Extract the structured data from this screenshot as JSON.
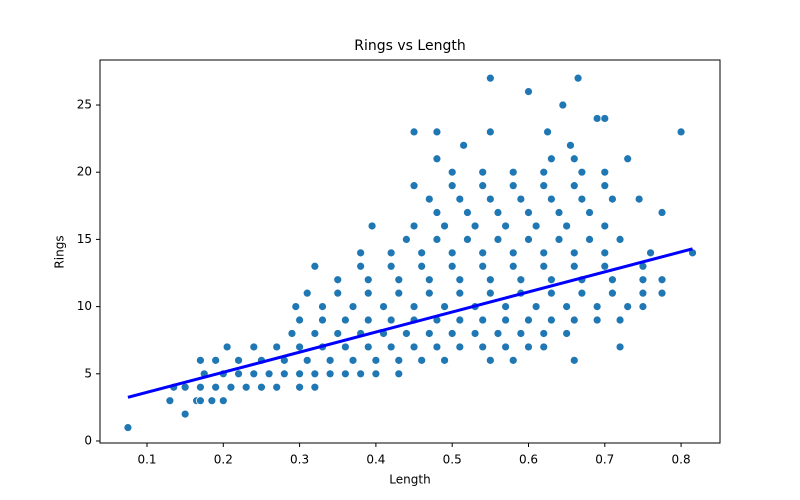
{
  "chart_data": {
    "type": "scatter",
    "title": "Rings vs Length",
    "x_label": "Length",
    "y_label": "Rings",
    "color": "#1f77b4",
    "x": [
      0.13,
      0.165,
      0.17,
      0.185,
      0.2,
      0.135,
      0.15,
      0.17,
      0.19,
      0.21,
      0.23,
      0.25,
      0.27,
      0.3,
      0.32,
      0.175,
      0.2,
      0.22,
      0.24,
      0.26,
      0.28,
      0.3,
      0.32,
      0.34,
      0.36,
      0.38,
      0.4,
      0.43,
      0.17,
      0.19,
      0.22,
      0.25,
      0.28,
      0.31,
      0.34,
      0.37,
      0.4,
      0.43,
      0.46,
      0.49,
      0.55,
      0.205,
      0.24,
      0.27,
      0.3,
      0.33,
      0.36,
      0.39,
      0.42,
      0.45,
      0.48,
      0.51,
      0.54,
      0.57,
      0.6,
      0.62,
      0.72,
      0.29,
      0.32,
      0.35,
      0.38,
      0.41,
      0.44,
      0.47,
      0.5,
      0.53,
      0.56,
      0.59,
      0.62,
      0.65,
      0.3,
      0.33,
      0.36,
      0.39,
      0.42,
      0.45,
      0.48,
      0.51,
      0.54,
      0.57,
      0.6,
      0.63,
      0.66,
      0.69,
      0.72,
      0.295,
      0.33,
      0.37,
      0.41,
      0.45,
      0.49,
      0.53,
      0.57,
      0.61,
      0.65,
      0.69,
      0.73,
      0.75,
      0.31,
      0.35,
      0.39,
      0.43,
      0.47,
      0.51,
      0.55,
      0.59,
      0.63,
      0.67,
      0.71,
      0.75,
      0.775,
      0.35,
      0.39,
      0.43,
      0.47,
      0.51,
      0.55,
      0.59,
      0.63,
      0.67,
      0.71,
      0.75,
      0.775,
      0.32,
      0.38,
      0.42,
      0.46,
      0.5,
      0.54,
      0.58,
      0.62,
      0.66,
      0.7,
      0.75,
      0.38,
      0.42,
      0.46,
      0.5,
      0.54,
      0.58,
      0.62,
      0.66,
      0.7,
      0.76,
      0.44,
      0.48,
      0.52,
      0.56,
      0.6,
      0.64,
      0.68,
      0.72,
      0.395,
      0.45,
      0.49,
      0.53,
      0.57,
      0.61,
      0.65,
      0.7,
      0.48,
      0.52,
      0.56,
      0.6,
      0.64,
      0.68,
      0.775,
      0.47,
      0.51,
      0.55,
      0.59,
      0.63,
      0.67,
      0.71,
      0.745,
      0.45,
      0.5,
      0.54,
      0.58,
      0.62,
      0.66,
      0.7,
      0.5,
      0.54,
      0.58,
      0.62,
      0.67,
      0.7,
      0.48,
      0.63,
      0.66,
      0.73,
      0.075,
      0.15,
      0.515,
      0.655,
      0.45,
      0.48,
      0.55,
      0.625,
      0.8,
      0.69,
      0.7,
      0.645,
      0.6,
      0.55,
      0.665,
      0.815,
      0.66,
      0.58
    ],
    "values": [
      3,
      3,
      3,
      3,
      3,
      4,
      4,
      4,
      4,
      4,
      4,
      4,
      4,
      4,
      4,
      5,
      5,
      5,
      5,
      5,
      5,
      5,
      5,
      5,
      5,
      5,
      5,
      5,
      6,
      6,
      6,
      6,
      6,
      6,
      6,
      6,
      6,
      6,
      6,
      6,
      6,
      7,
      7,
      7,
      7,
      7,
      7,
      7,
      7,
      7,
      7,
      7,
      7,
      7,
      7,
      7,
      7,
      8,
      8,
      8,
      8,
      8,
      8,
      8,
      8,
      8,
      8,
      8,
      8,
      8,
      9,
      9,
      9,
      9,
      9,
      9,
      9,
      9,
      9,
      9,
      9,
      9,
      9,
      9,
      9,
      10,
      10,
      10,
      10,
      10,
      10,
      10,
      10,
      10,
      10,
      10,
      10,
      10,
      11,
      11,
      11,
      11,
      11,
      11,
      11,
      11,
      11,
      11,
      11,
      11,
      11,
      12,
      12,
      12,
      12,
      12,
      12,
      12,
      12,
      12,
      12,
      12,
      12,
      13,
      13,
      13,
      13,
      13,
      13,
      13,
      13,
      13,
      13,
      13,
      14,
      14,
      14,
      14,
      14,
      14,
      14,
      14,
      14,
      14,
      15,
      15,
      15,
      15,
      15,
      15,
      15,
      15,
      16,
      16,
      16,
      16,
      16,
      16,
      16,
      16,
      17,
      17,
      17,
      17,
      17,
      17,
      17,
      18,
      18,
      18,
      18,
      18,
      18,
      18,
      18,
      19,
      19,
      19,
      19,
      19,
      19,
      19,
      20,
      20,
      20,
      20,
      20,
      20,
      21,
      21,
      21,
      21,
      1,
      2,
      22,
      22,
      23,
      23,
      23,
      23,
      23,
      24,
      24,
      25,
      26,
      27,
      27,
      14,
      6,
      6
    ],
    "trend": {
      "x": [
        0.075,
        0.815
      ],
      "values": [
        3.25,
        14.3
      ],
      "color": "#0000ff"
    },
    "xlim": [
      0.0384,
      0.851
    ],
    "ylim": [
      -0.15,
      28.35
    ],
    "xticks": [
      0.1,
      0.2,
      0.3,
      0.4,
      0.5,
      0.6,
      0.7,
      0.8
    ],
    "yticks": [
      0,
      5,
      10,
      15,
      20,
      25
    ]
  }
}
